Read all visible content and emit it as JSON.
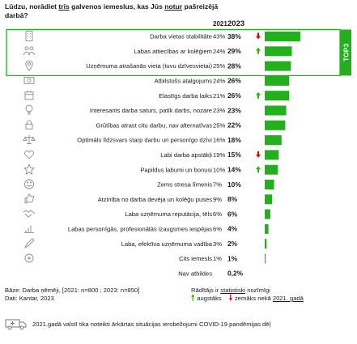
{
  "question": {
    "part1": "Lūdzu, norādiet ",
    "emph1": "trīs",
    "part2": " galvenos iemeslus, kas Jūs ",
    "emph2": "notur",
    "part3": " pašreizējā darbā?"
  },
  "top3_label": "TOP3",
  "colors": {
    "bar": "#22b01c",
    "frame": "#22b01c",
    "up": "#2db400",
    "down": "#e00000",
    "icon": "#8a8a8a"
  },
  "chart_data": {
    "type": "bar",
    "orientation": "horizontal",
    "title": "",
    "series_labels": [
      "2021",
      "2023"
    ],
    "bar_series": "2023",
    "xlim": [
      0,
      45
    ],
    "top_group_size": 3,
    "rows": [
      {
        "label": "Darba vietas stabilitāte",
        "icon": "building-icon",
        "v2021": "43%",
        "v2023": "38%",
        "value": 38,
        "change": "down"
      },
      {
        "label": "Labas attiecības ar kolēģiem",
        "icon": "people-icon",
        "v2021": "24%",
        "v2023": "29%",
        "value": 29,
        "change": "up"
      },
      {
        "label": "Uzņēmuma atrašanās vieta (tuvu dzīvesvietai)",
        "icon": "location-icon",
        "v2021": "25%",
        "v2023": "28%",
        "value": 28,
        "change": ""
      },
      {
        "label": "Atbilstošs atalgojums",
        "icon": "money-icon",
        "v2021": "24%",
        "v2023": "26%",
        "value": 26,
        "change": ""
      },
      {
        "label": "Elastīgs darba laiks",
        "icon": "calendar-icon",
        "v2021": "21%",
        "v2023": "26%",
        "value": 26,
        "change": "up"
      },
      {
        "label": "Interesants darba saturs, patīk darbs, nozare",
        "icon": "lightbulb-icon",
        "v2021": "23%",
        "v2023": "23%",
        "value": 23,
        "change": ""
      },
      {
        "label": "Grūtības atrast citu darbu, nav alternatīvas",
        "icon": "lock-icon",
        "v2021": "25%",
        "v2023": "22%",
        "value": 22,
        "change": ""
      },
      {
        "label": "Optimāls līdzsvars starp darbu un personīgo dzīvi",
        "icon": "balance-icon",
        "v2021": "16%",
        "v2023": "18%",
        "value": 18,
        "change": ""
      },
      {
        "label": "Labi darba apstākļi",
        "icon": "heart-icon",
        "v2021": "19%",
        "v2023": "15%",
        "value": 15,
        "change": "down"
      },
      {
        "label": "Papildus labumi un bonusi",
        "icon": "star-icon",
        "v2021": "10%",
        "v2023": "14%",
        "value": 14,
        "change": "up"
      },
      {
        "label": "Zems stresa līmenis",
        "icon": "smile-icon",
        "v2021": "7%",
        "v2023": "10%",
        "value": 10,
        "change": ""
      },
      {
        "label": "Atzinība no darba devēja un kolēģu puses",
        "icon": "thumbs-up-icon",
        "v2021": "9%",
        "v2023": "8%",
        "value": 8,
        "change": ""
      },
      {
        "label": "Laba uzņēmuma reputācija, tēls",
        "icon": "handshake-icon",
        "v2021": "6%",
        "v2023": "6%",
        "value": 6,
        "change": ""
      },
      {
        "label": "Labas personīgās, profesionālās izaugsmes iespējas",
        "icon": "growth-icon",
        "v2021": "6%",
        "v2023": "4%",
        "value": 4,
        "change": ""
      },
      {
        "label": "Laba, efektīva uzņēmuma vadība",
        "icon": "pen-icon",
        "v2021": "3%",
        "v2023": "2%",
        "value": 2,
        "change": ""
      },
      {
        "label": "Cits iemesls",
        "icon": "other-icon",
        "v2021": "1%",
        "v2023": "1%",
        "value": 1,
        "change": ""
      },
      {
        "label": "Nav atbildes",
        "icon": "",
        "v2021": "",
        "v2023": "0,2%",
        "value": 0.2,
        "change": ""
      }
    ]
  },
  "footer": {
    "base": "Bāze: Darba ņēmēji, [2021: n=800 ; 2023: n=850]",
    "source": "Dati: Kantar, 2023",
    "legend_intro_part1": "Rādītājs ir ",
    "legend_intro_emph": "statistiski",
    "legend_intro_part2": " nozīmīgi",
    "legend_up": "augstāks",
    "legend_down_part1": "zemāks nekā ",
    "legend_down_emph": "2021. gadā",
    "covid_note": "2021.gadā valstī tika noteikti ārkārtas situācijas ierobežojumi COVID-19 pandēmijas dēļ"
  }
}
